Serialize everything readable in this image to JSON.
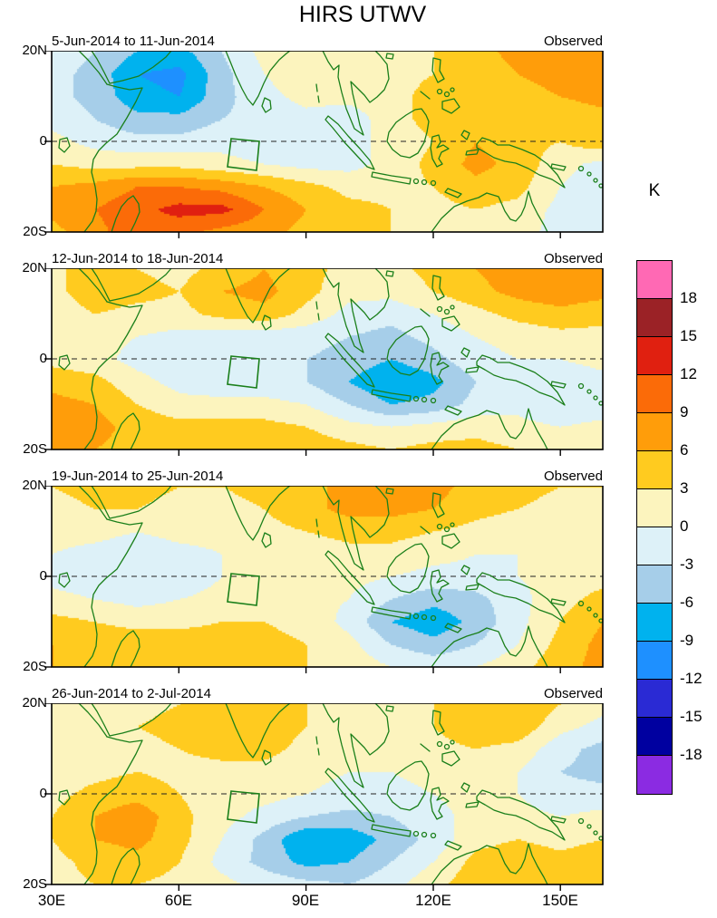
{
  "chart_data": {
    "type": "heatmap",
    "title": "HIRS UTWV",
    "units": "K",
    "x_ticks": [
      "30E",
      "60E",
      "90E",
      "120E",
      "150E"
    ],
    "y_ticks": [
      "20N",
      "0",
      "20S"
    ],
    "x_range_deg": [
      30,
      160
    ],
    "y_range_deg": [
      -20,
      20
    ],
    "lon_grid": [
      30,
      40,
      50,
      60,
      70,
      80,
      90,
      100,
      110,
      120,
      130,
      140,
      150,
      160
    ],
    "lat_grid": [
      20,
      15,
      10,
      5,
      0,
      -5,
      -10,
      -15,
      -20
    ],
    "colorbar": {
      "label": "K",
      "levels": [
        -18,
        -15,
        -12,
        -9,
        -6,
        -3,
        0,
        3,
        6,
        9,
        12,
        15,
        18
      ],
      "colors": [
        "#8B2BE2",
        "#0000A0",
        "#2A2AD4",
        "#1E90FF",
        "#00B2EE",
        "#A6CEE9",
        "#DDF1F8",
        "#FCF4BE",
        "#FFCB1F",
        "#FF9D0A",
        "#FB6B08",
        "#E02010",
        "#9B2226",
        "#FF69B4"
      ]
    },
    "coast_color": "#1a7f1a",
    "panels": [
      {
        "period": "5-Jun-2014 to 11-Jun-2014",
        "label": "Observed",
        "values": [
          [
            -1,
            -3,
            -6,
            -7,
            -3,
            1,
            2,
            1,
            1,
            3,
            5,
            7,
            8,
            7
          ],
          [
            -2,
            -4,
            -9,
            -10,
            -4,
            0,
            2,
            1,
            2,
            3,
            4,
            6,
            8,
            8
          ],
          [
            -2,
            -4,
            -8,
            -9,
            -4,
            -1,
            1,
            1,
            2,
            4,
            5,
            4,
            6,
            7
          ],
          [
            -1,
            -3,
            -5,
            -5,
            -3,
            -2,
            -1,
            -2,
            2,
            4,
            5,
            3,
            4,
            5
          ],
          [
            1,
            -1,
            -2,
            -2,
            -1,
            -2,
            -2,
            -1,
            1,
            3,
            6,
            4,
            3,
            5
          ],
          [
            3,
            2,
            2,
            2,
            1,
            0,
            -1,
            -1,
            1,
            4,
            7,
            5,
            1,
            -1
          ],
          [
            6,
            7,
            9,
            9,
            8,
            6,
            4,
            2,
            2,
            3,
            5,
            4,
            0,
            -2
          ],
          [
            7,
            9,
            11,
            13,
            13,
            9,
            6,
            4,
            3,
            2,
            3,
            2,
            -1,
            -3
          ],
          [
            5,
            8,
            11,
            10,
            8,
            7,
            5,
            4,
            3,
            2,
            2,
            1,
            -1,
            -2
          ]
        ]
      },
      {
        "period": "12-Jun-2014 to 18-Jun-2014",
        "label": "Observed",
        "values": [
          [
            2,
            5,
            3,
            2,
            4,
            6,
            4,
            2,
            2,
            4,
            6,
            8,
            9,
            8
          ],
          [
            2,
            5,
            4,
            3,
            6,
            7,
            4,
            1,
            1,
            3,
            5,
            7,
            8,
            7
          ],
          [
            1,
            3,
            2,
            2,
            4,
            5,
            2,
            -1,
            -2,
            0,
            2,
            4,
            5,
            4
          ],
          [
            0,
            1,
            0,
            -1,
            -2,
            -2,
            -2,
            -3,
            -4,
            -2,
            0,
            1,
            2,
            2
          ],
          [
            2,
            1,
            -1,
            -2,
            -3,
            -3,
            -3,
            -4,
            -6,
            -4,
            -1,
            0,
            0,
            1
          ],
          [
            5,
            4,
            1,
            -1,
            -2,
            -2,
            -3,
            -6,
            -9,
            -7,
            -3,
            -1,
            -2,
            -1
          ],
          [
            7,
            6,
            3,
            1,
            1,
            1,
            0,
            -3,
            -6,
            -5,
            -2,
            -1,
            -3,
            -2
          ],
          [
            8,
            7,
            5,
            4,
            4,
            4,
            3,
            1,
            0,
            1,
            2,
            1,
            0,
            1
          ],
          [
            7,
            6,
            5,
            5,
            5,
            6,
            5,
            4,
            3,
            4,
            4,
            3,
            2,
            3
          ]
        ]
      },
      {
        "period": "19-Jun-2014 to 25-Jun-2014",
        "label": "Observed",
        "values": [
          [
            3,
            4,
            4,
            3,
            3,
            4,
            5,
            7,
            8,
            7,
            5,
            4,
            3,
            3
          ],
          [
            2,
            3,
            3,
            2,
            2,
            3,
            5,
            7,
            7,
            6,
            4,
            3,
            2,
            2
          ],
          [
            1,
            1,
            0,
            1,
            1,
            2,
            3,
            4,
            4,
            3,
            2,
            1,
            1,
            2
          ],
          [
            0,
            -1,
            -2,
            -1,
            0,
            1,
            1,
            2,
            2,
            1,
            0,
            0,
            1,
            2
          ],
          [
            -1,
            -2,
            -3,
            -2,
            0,
            1,
            1,
            1,
            0,
            -1,
            -1,
            0,
            1,
            2
          ],
          [
            1,
            0,
            -1,
            0,
            1,
            1,
            1,
            0,
            -3,
            -5,
            -4,
            -1,
            2,
            4
          ],
          [
            4,
            3,
            2,
            2,
            3,
            3,
            2,
            -1,
            -6,
            -8,
            -5,
            -1,
            3,
            6
          ],
          [
            6,
            5,
            5,
            5,
            5,
            4,
            3,
            1,
            -3,
            -5,
            -3,
            0,
            4,
            7
          ],
          [
            6,
            6,
            6,
            6,
            5,
            4,
            3,
            2,
            0,
            -1,
            0,
            2,
            5,
            7
          ]
        ]
      },
      {
        "period": "26-Jun-2014 to 2-Jul-2014",
        "label": "Observed",
        "values": [
          [
            1,
            2,
            2,
            3,
            5,
            5,
            3,
            2,
            2,
            3,
            5,
            6,
            3,
            1
          ],
          [
            1,
            2,
            3,
            4,
            6,
            5,
            3,
            2,
            2,
            3,
            5,
            5,
            1,
            -1
          ],
          [
            0,
            1,
            2,
            3,
            4,
            4,
            2,
            1,
            1,
            2,
            3,
            2,
            -2,
            -4
          ],
          [
            1,
            2,
            3,
            2,
            2,
            2,
            1,
            0,
            0,
            1,
            2,
            0,
            -3,
            -4
          ],
          [
            2,
            4,
            5,
            3,
            1,
            1,
            0,
            -1,
            -1,
            0,
            1,
            0,
            -2,
            -2
          ],
          [
            3,
            6,
            8,
            4,
            1,
            -1,
            -3,
            -4,
            -3,
            -1,
            1,
            1,
            0,
            1
          ],
          [
            3,
            6,
            7,
            4,
            0,
            -4,
            -9,
            -8,
            -5,
            -2,
            2,
            3,
            2,
            3
          ],
          [
            2,
            4,
            5,
            3,
            -1,
            -4,
            -7,
            -6,
            -3,
            0,
            4,
            5,
            4,
            5
          ],
          [
            2,
            3,
            3,
            2,
            1,
            -1,
            -2,
            -3,
            -1,
            2,
            5,
            6,
            5,
            6
          ]
        ]
      }
    ]
  }
}
